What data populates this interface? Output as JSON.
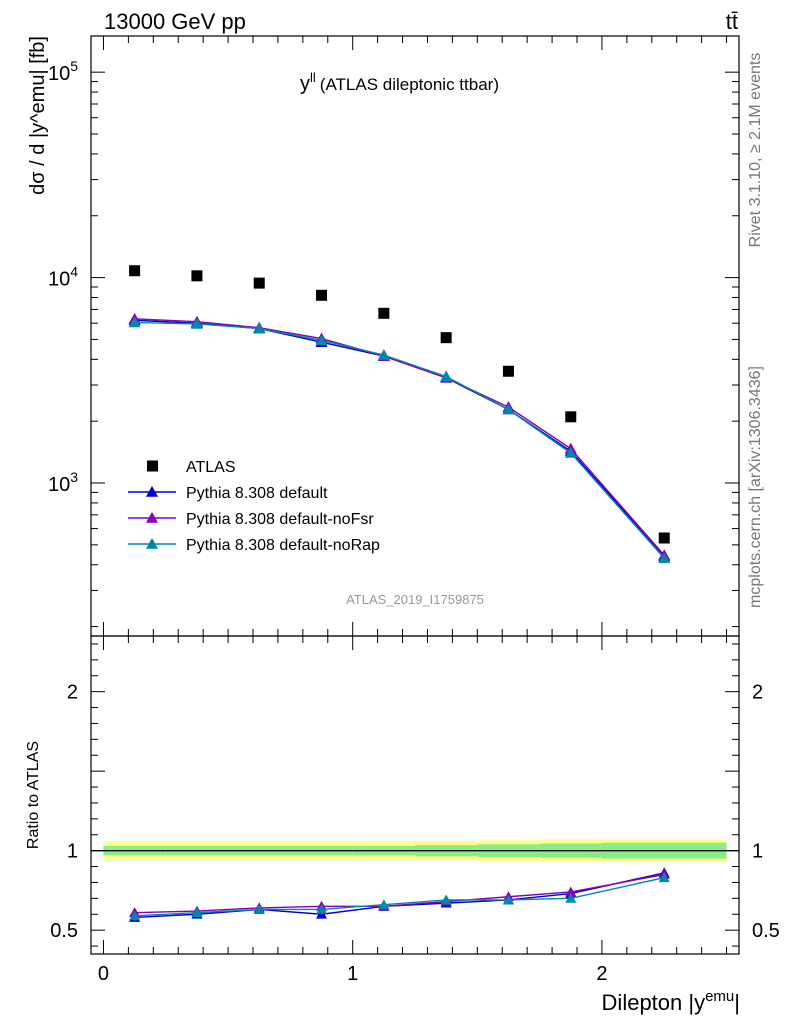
{
  "header": {
    "energy_label": "13000 GeV pp",
    "process_label": "tt̄",
    "observable_main": "y",
    "observable_sup": "ll",
    "observable_desc": "(ATLAS dileptonic ttbar)",
    "analysis_id": "ATLAS_2019_I1759875"
  },
  "side_text": {
    "rivet": "Rivet 3.1.10, ≥ 2.1M events",
    "mcplots": "mcplots.cern.ch [arXiv:1306.3436]"
  },
  "colors": {
    "data": "#000000",
    "default": "#0000cc",
    "noFsr": "#8800bb",
    "noRap": "#0088aa",
    "band_outer": "#ffff88",
    "band_inner": "#88ee88"
  },
  "chart_data": [
    {
      "type": "scatter",
      "panel": "main",
      "ylabel": "dσ / d |y^emu| [fb]",
      "yscale": "log",
      "ylim": [
        180,
        150000
      ],
      "xlim": [
        -0.05,
        2.55
      ],
      "x": [
        0.125,
        0.375,
        0.625,
        0.875,
        1.125,
        1.375,
        1.625,
        1.875,
        2.25
      ],
      "series": [
        {
          "name": "ATLAS",
          "key": "data",
          "marker": "square",
          "values": [
            10800,
            10200,
            9400,
            8200,
            6700,
            5100,
            3500,
            2100,
            540
          ]
        },
        {
          "name": "Pythia 8.308 default",
          "key": "default",
          "marker": "triangle",
          "values": [
            6200,
            6000,
            5650,
            4850,
            4150,
            3250,
            2280,
            1430,
            440
          ]
        },
        {
          "name": "Pythia 8.308 default-noFsr",
          "key": "noFsr",
          "marker": "triangle",
          "values": [
            6300,
            6100,
            5700,
            5050,
            4150,
            3250,
            2340,
            1470,
            445
          ]
        },
        {
          "name": "Pythia 8.308 default-noRap",
          "key": "noRap",
          "marker": "triangle",
          "values": [
            6050,
            5950,
            5650,
            4950,
            4200,
            3300,
            2280,
            1400,
            430
          ]
        }
      ],
      "yticks": [
        {
          "value": 1000,
          "base": "10",
          "exp": "3"
        },
        {
          "value": 10000,
          "base": "10",
          "exp": "4"
        },
        {
          "value": 100000,
          "base": "10",
          "exp": "5"
        }
      ],
      "legend": "lower-left"
    },
    {
      "type": "line",
      "panel": "ratio",
      "ylabel": "Ratio to ATLAS",
      "xlabel_main": "Dilepton |y",
      "xlabel_sup": "emu",
      "xlabel_tail": "|",
      "ylim": [
        0.35,
        2.35
      ],
      "xlim": [
        -0.05,
        2.55
      ],
      "yticks": [
        {
          "value": 0.5,
          "label": "0.5"
        },
        {
          "value": 1,
          "label": "1"
        },
        {
          "value": 2,
          "label": "2"
        }
      ],
      "xticks": [
        {
          "value": 0,
          "label": "0"
        },
        {
          "value": 1,
          "label": "1"
        },
        {
          "value": 2,
          "label": "2"
        }
      ],
      "bins": [
        [
          0,
          0.25
        ],
        [
          0.25,
          0.5
        ],
        [
          0.5,
          0.75
        ],
        [
          0.75,
          1.0
        ],
        [
          1.0,
          1.25
        ],
        [
          1.25,
          1.5
        ],
        [
          1.5,
          1.75
        ],
        [
          1.75,
          2.0
        ],
        [
          2.0,
          2.5
        ]
      ],
      "band_outer": [
        0.06,
        0.06,
        0.06,
        0.06,
        0.06,
        0.06,
        0.065,
        0.07,
        0.07
      ],
      "band_inner": [
        0.03,
        0.03,
        0.03,
        0.03,
        0.03,
        0.035,
        0.04,
        0.045,
        0.05
      ],
      "x": [
        0.125,
        0.375,
        0.625,
        0.875,
        1.125,
        1.375,
        1.625,
        1.875,
        2.25
      ],
      "series": [
        {
          "name": "Pythia 8.308 default",
          "key": "default",
          "values": [
            0.58,
            0.6,
            0.63,
            0.6,
            0.65,
            0.67,
            0.69,
            0.73,
            0.86
          ]
        },
        {
          "name": "Pythia 8.308 default-noFsr",
          "key": "noFsr",
          "values": [
            0.61,
            0.62,
            0.64,
            0.65,
            0.65,
            0.68,
            0.71,
            0.74,
            0.85
          ]
        },
        {
          "name": "Pythia 8.308 default-noRap",
          "key": "noRap",
          "values": [
            0.59,
            0.61,
            0.63,
            0.63,
            0.66,
            0.69,
            0.69,
            0.7,
            0.83
          ]
        }
      ]
    }
  ]
}
